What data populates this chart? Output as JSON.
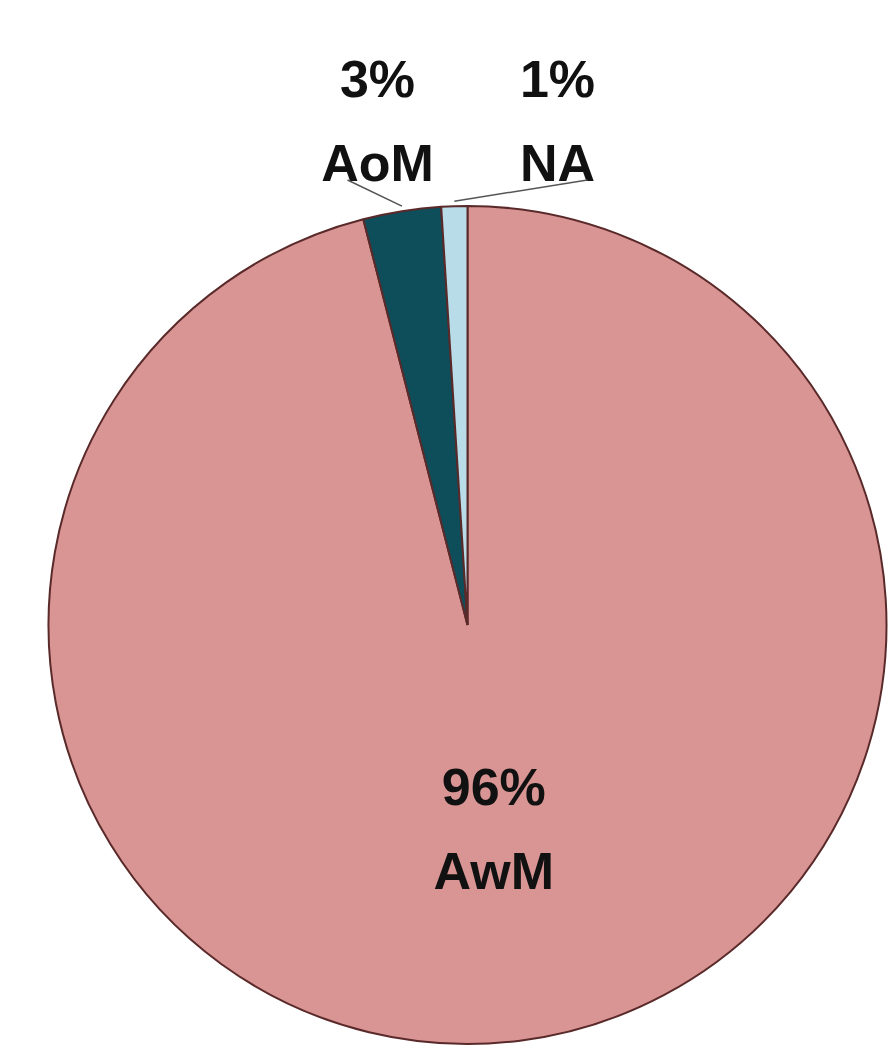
{
  "chart_data": {
    "type": "pie",
    "categories": [
      "AwM",
      "AoM",
      "NA"
    ],
    "values": [
      96,
      3,
      1
    ],
    "value_labels": [
      "96%",
      "3%",
      "1%"
    ],
    "colors": [
      "#d99594",
      "#0e4d5a",
      "#b8dde9"
    ],
    "legend": false
  }
}
